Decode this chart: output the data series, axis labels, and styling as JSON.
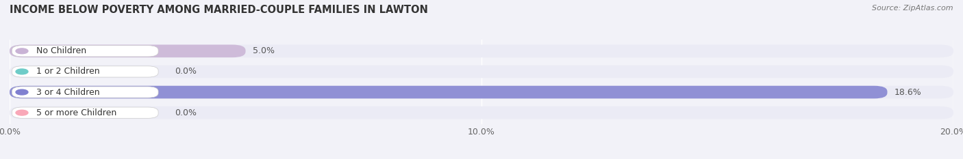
{
  "title": "INCOME BELOW POVERTY AMONG MARRIED-COUPLE FAMILIES IN LAWTON",
  "source": "Source: ZipAtlas.com",
  "categories": [
    "No Children",
    "1 or 2 Children",
    "3 or 4 Children",
    "5 or more Children"
  ],
  "values": [
    5.0,
    0.0,
    18.6,
    0.0
  ],
  "bar_colors": [
    "#c9b3d5",
    "#6eccc8",
    "#8080d0",
    "#f9a8b8"
  ],
  "xlim": [
    0,
    20.0
  ],
  "xticks": [
    0.0,
    10.0,
    20.0
  ],
  "xticklabels": [
    "0.0%",
    "10.0%",
    "20.0%"
  ],
  "background_color": "#f2f2f8",
  "bar_bg_color": "#e2e2ee",
  "bar_row_bg": "#ebebf5",
  "bar_height": 0.62,
  "title_fontsize": 10.5,
  "tick_fontsize": 9,
  "label_fontsize": 9,
  "value_label_color": "#555555"
}
